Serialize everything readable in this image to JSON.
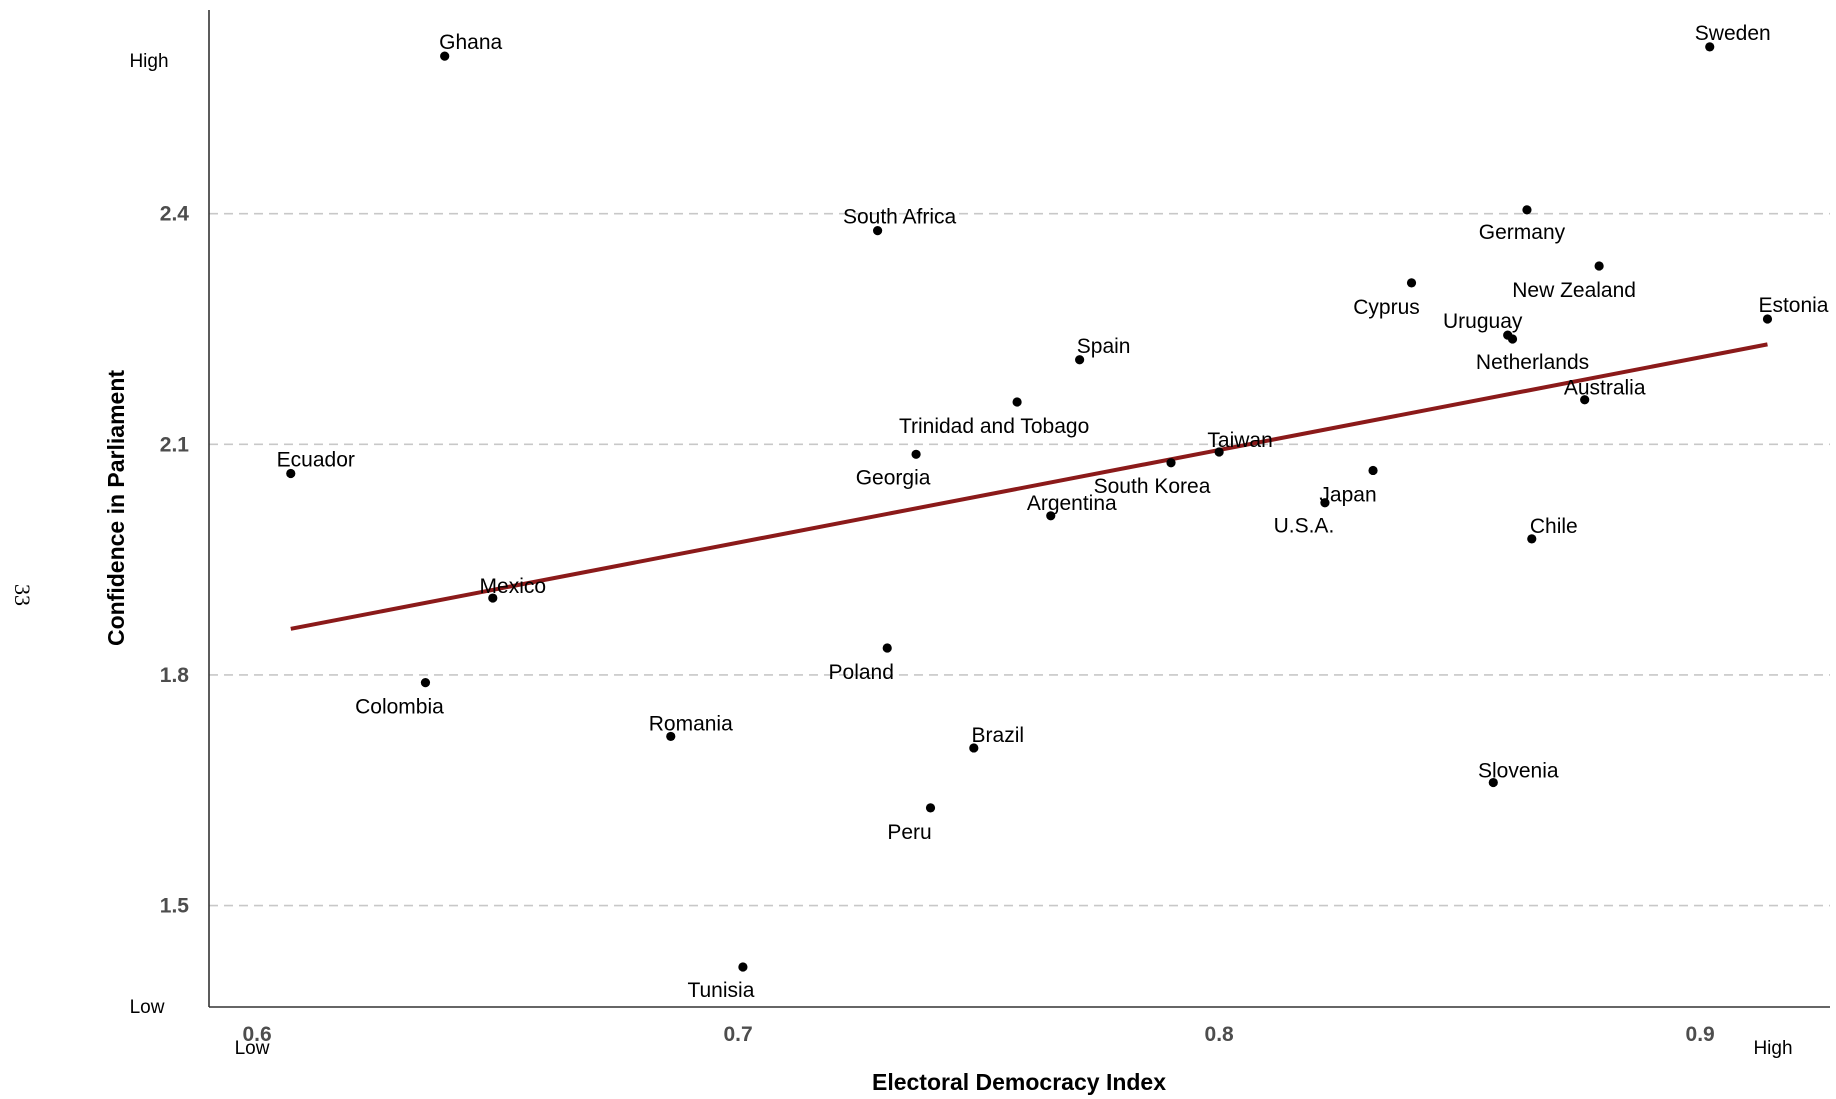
{
  "page_number": "33",
  "chart_data": {
    "type": "scatter",
    "title": "",
    "xlabel": "Electoral Democracy Index",
    "ylabel": "Confidence in Parliament",
    "xlim": [
      0.59,
      0.927
    ],
    "ylim": [
      1.368,
      2.665
    ],
    "x_ticks": [
      0.6,
      0.7,
      0.8,
      0.9
    ],
    "x_tick_labels": [
      "0.6",
      "0.7",
      "0.8",
      "0.9"
    ],
    "y_ticks": [
      1.5,
      1.8,
      2.1,
      2.4
    ],
    "y_tick_labels": [
      "1.5",
      "1.8",
      "2.1",
      "2.4"
    ],
    "x_end_labels": {
      "low": "Low",
      "high": "High"
    },
    "y_end_labels": {
      "low": "Low",
      "high": "High"
    },
    "grid": "horizontal dashed",
    "point_color": "#000000",
    "trend_color": "#8b1a1a",
    "trend_line": {
      "x": [
        0.607,
        0.914
      ],
      "y": [
        1.86,
        2.23
      ]
    },
    "points": [
      {
        "label": "Ghana",
        "x": 0.639,
        "y": 2.605
      },
      {
        "label": "Sweden",
        "x": 0.902,
        "y": 2.617
      },
      {
        "label": "South Africa",
        "x": 0.729,
        "y": 2.378
      },
      {
        "label": "Germany",
        "x": 0.864,
        "y": 2.405
      },
      {
        "label": "New Zealand",
        "x": 0.879,
        "y": 2.332
      },
      {
        "label": "Cyprus",
        "x": 0.84,
        "y": 2.31
      },
      {
        "label": "Estonia",
        "x": 0.914,
        "y": 2.263
      },
      {
        "label": "Uruguay",
        "x": 0.86,
        "y": 2.242
      },
      {
        "label": "Netherlands",
        "x": 0.861,
        "y": 2.237
      },
      {
        "label": "Spain",
        "x": 0.771,
        "y": 2.21
      },
      {
        "label": "Trinidad and Tobago",
        "x": 0.758,
        "y": 2.155
      },
      {
        "label": "Australia",
        "x": 0.876,
        "y": 2.158
      },
      {
        "label": "Taiwan",
        "x": 0.8,
        "y": 2.09
      },
      {
        "label": "Georgia",
        "x": 0.737,
        "y": 2.087
      },
      {
        "label": "South Korea",
        "x": 0.79,
        "y": 2.076
      },
      {
        "label": "Ecuador",
        "x": 0.607,
        "y": 2.062
      },
      {
        "label": "Japan",
        "x": 0.832,
        "y": 2.066
      },
      {
        "label": "U.S.A.",
        "x": 0.822,
        "y": 2.024
      },
      {
        "label": "Argentina",
        "x": 0.765,
        "y": 2.007
      },
      {
        "label": "Chile",
        "x": 0.865,
        "y": 1.977
      },
      {
        "label": "Mexico",
        "x": 0.649,
        "y": 1.9
      },
      {
        "label": "Poland",
        "x": 0.731,
        "y": 1.835
      },
      {
        "label": "Colombia",
        "x": 0.635,
        "y": 1.79
      },
      {
        "label": "Romania",
        "x": 0.686,
        "y": 1.72
      },
      {
        "label": "Brazil",
        "x": 0.749,
        "y": 1.705
      },
      {
        "label": "Slovenia",
        "x": 0.857,
        "y": 1.66
      },
      {
        "label": "Peru",
        "x": 0.74,
        "y": 1.627
      },
      {
        "label": "Tunisia",
        "x": 0.701,
        "y": 1.42
      }
    ]
  }
}
